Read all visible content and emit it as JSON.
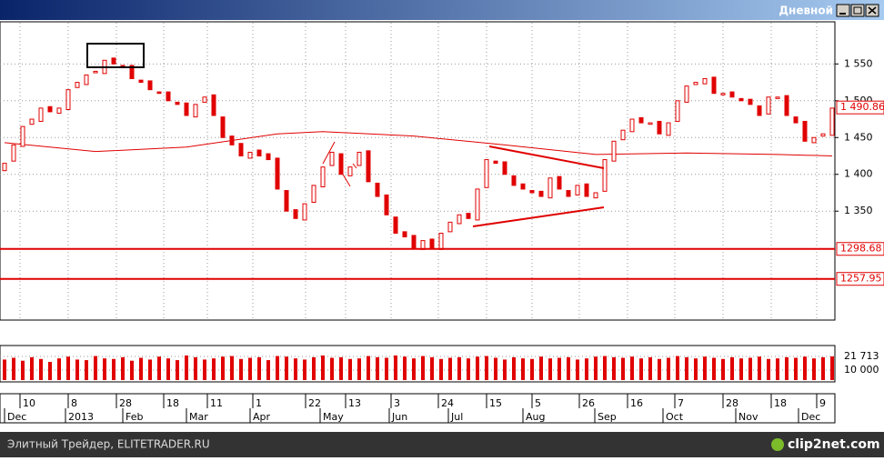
{
  "window": {
    "title": "Дневной"
  },
  "footer": {
    "text": "Элитный Трейдер, ELITETRADER.RU",
    "logo": "clip2net.com"
  },
  "chart_data": [
    {
      "type": "candlestick",
      "xlim": [
        -0.5,
        91.3
      ],
      "ylim": [
        1202,
        1606
      ],
      "yticks": [
        {
          "value": 1550,
          "label": "1 550"
        },
        {
          "value": 1500,
          "label": "1 500"
        },
        {
          "value": 1450,
          "label": "1 450"
        },
        {
          "value": 1400,
          "label": "1 400"
        },
        {
          "value": 1350,
          "label": "1 350"
        }
      ],
      "color": "#e00000",
      "grid": true,
      "open": [
        1405,
        1418,
        1438,
        1468,
        1472,
        1492,
        1483,
        1488,
        1518,
        1522,
        1538,
        1537,
        1558,
        1548,
        1548,
        1528,
        1527,
        1512,
        1512,
        1498,
        1497,
        1478,
        1498,
        1508,
        1478,
        1452,
        1442,
        1422,
        1433,
        1428,
        1422,
        1378,
        1352,
        1338,
        1362,
        1383,
        1412,
        1428,
        1398,
        1412,
        1432,
        1388,
        1372,
        1342,
        1322,
        1317,
        1298,
        1312,
        1298,
        1322,
        1333,
        1347,
        1338,
        1382,
        1418,
        1417,
        1398,
        1387,
        1378,
        1377,
        1368,
        1397,
        1378,
        1372,
        1387,
        1368,
        1377,
        1418,
        1447,
        1458,
        1477,
        1468,
        1472,
        1453,
        1472,
        1498,
        1522,
        1523,
        1532,
        1508,
        1512,
        1503,
        1502,
        1493,
        1482,
        1503,
        1507,
        1478,
        1472,
        1443,
        1452,
        1453
      ],
      "close": [
        1415,
        1440,
        1465,
        1475,
        1490,
        1485,
        1490,
        1515,
        1525,
        1535,
        1540,
        1555,
        1550,
        1545,
        1530,
        1525,
        1515,
        1510,
        1500,
        1495,
        1480,
        1495,
        1505,
        1480,
        1450,
        1440,
        1425,
        1430,
        1425,
        1420,
        1380,
        1350,
        1340,
        1360,
        1385,
        1410,
        1430,
        1400,
        1410,
        1430,
        1390,
        1370,
        1345,
        1320,
        1315,
        1300,
        1310,
        1300,
        1320,
        1335,
        1345,
        1340,
        1380,
        1420,
        1415,
        1400,
        1385,
        1380,
        1375,
        1370,
        1395,
        1380,
        1370,
        1385,
        1370,
        1375,
        1420,
        1445,
        1460,
        1475,
        1470,
        1470,
        1455,
        1470,
        1500,
        1520,
        1525,
        1530,
        1510,
        1510,
        1505,
        1500,
        1495,
        1480,
        1505,
        1505,
        1480,
        1470,
        1445,
        1450,
        1455,
        1490
      ],
      "moving_average": {
        "x": [
          0,
          10,
          20,
          30,
          35,
          45,
          55,
          65,
          75,
          85,
          91
        ],
        "values": [
          1443,
          1431,
          1437,
          1455,
          1458,
          1452,
          1440,
          1427,
          1429,
          1427,
          1425
        ]
      },
      "levels": [
        1298.68,
        1257.95
      ],
      "last_price": {
        "value": 1490.86,
        "label": "1 490.86"
      },
      "xticks": [
        {
          "value": 1.7,
          "label": "10"
        },
        {
          "value": 7,
          "label": "8"
        },
        {
          "value": 12.3,
          "label": "28"
        },
        {
          "value": 17.5,
          "label": "18"
        },
        {
          "value": 22.3,
          "label": "11"
        },
        {
          "value": 27.3,
          "label": "1"
        },
        {
          "value": 33.1,
          "label": "22"
        },
        {
          "value": 37.5,
          "label": "13"
        },
        {
          "value": 42.5,
          "label": "3"
        },
        {
          "value": 47.7,
          "label": "24"
        },
        {
          "value": 53,
          "label": "15"
        },
        {
          "value": 58,
          "label": "5"
        },
        {
          "value": 63.2,
          "label": "26"
        },
        {
          "value": 68.5,
          "label": "16"
        },
        {
          "value": 73.7,
          "label": "7"
        },
        {
          "value": 79,
          "label": "28"
        },
        {
          "value": 84.3,
          "label": "18"
        },
        {
          "value": 89.3,
          "label": "9"
        }
      ],
      "months": [
        {
          "value": 0,
          "label": "Dec"
        },
        {
          "value": 6.7,
          "label": "2013"
        },
        {
          "value": 13,
          "label": "Feb"
        },
        {
          "value": 20,
          "label": "Mar"
        },
        {
          "value": 27,
          "label": "Apr"
        },
        {
          "value": 34.7,
          "label": "May"
        },
        {
          "value": 42.3,
          "label": "Jun"
        },
        {
          "value": 48.8,
          "label": "Jul"
        },
        {
          "value": 57,
          "label": "Aug"
        },
        {
          "value": 64.9,
          "label": "Sep"
        },
        {
          "value": 72.4,
          "label": "Oct"
        },
        {
          "value": 80.4,
          "label": "Nov"
        },
        {
          "value": 87.3,
          "label": "Dec"
        }
      ]
    },
    {
      "type": "bar",
      "ylim": [
        1400,
        28700
      ],
      "color": "#e00000",
      "yticks": [
        {
          "value": 21713,
          "label": "21 713"
        },
        {
          "value": 10000,
          "label": "10 000"
        }
      ],
      "values": [
        19000,
        20500,
        18000,
        21000,
        19500,
        17000,
        20000,
        21500,
        19000,
        18500,
        22000,
        20000,
        19500,
        21000,
        18000,
        20500,
        19000,
        21500,
        20000,
        18500,
        22500,
        21000,
        19000,
        20000,
        21500,
        22000,
        19500,
        20500,
        21000,
        18500,
        22000,
        21500,
        20000,
        19000,
        21000,
        22500,
        20500,
        21000,
        19500,
        20000,
        22000,
        21000,
        20500,
        22500,
        21500,
        20000,
        22000,
        21000,
        19500,
        20500,
        21000,
        20000,
        21500,
        22000,
        20500,
        19000,
        21000,
        20000,
        19500,
        21500,
        20000,
        20500,
        21000,
        19000,
        20000,
        21500,
        22000,
        21000,
        20500,
        21500,
        20000,
        21000,
        19500,
        20500,
        22000,
        21000,
        20000,
        21500,
        20500,
        19500,
        21000,
        20000,
        20500,
        21500,
        19500,
        20000,
        21000,
        20500,
        21500,
        20000,
        21000,
        21713
      ]
    }
  ]
}
